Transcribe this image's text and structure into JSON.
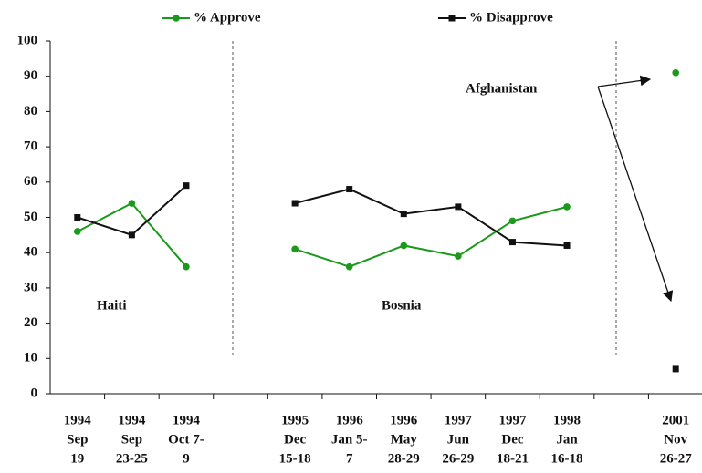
{
  "chart_data": {
    "type": "line",
    "categories": [
      [
        "1994",
        "Sep",
        "19"
      ],
      [
        "1994",
        "Sep",
        "23-25"
      ],
      [
        "1994",
        "Oct 7-",
        "9"
      ],
      null,
      [
        "1995",
        "Dec",
        "15-18"
      ],
      [
        "1996",
        "Jan 5-",
        "7"
      ],
      [
        "1996",
        "May",
        "28-29"
      ],
      [
        "1997",
        "Jun",
        "26-29"
      ],
      [
        "1997",
        "Dec",
        "18-21"
      ],
      [
        "1998",
        "Jan",
        "16-18"
      ],
      null,
      [
        "2001",
        "Nov",
        "26-27"
      ]
    ],
    "series": [
      {
        "name": "% Approve",
        "color": "#1a9a1a",
        "marker": "circle",
        "values": [
          46,
          54,
          36,
          null,
          41,
          36,
          42,
          39,
          49,
          53,
          null,
          91
        ]
      },
      {
        "name": "% Disapprove",
        "color": "#111111",
        "marker": "square",
        "values": [
          50,
          45,
          59,
          null,
          54,
          58,
          51,
          53,
          43,
          42,
          null,
          7
        ]
      }
    ],
    "annotations": [
      "Haiti",
      "Bosnia",
      "Afghanistan"
    ],
    "ylim": [
      0,
      100
    ],
    "yticks": [
      0,
      10,
      20,
      30,
      40,
      50,
      60,
      70,
      80,
      90,
      100
    ],
    "grid": false,
    "legend": "top"
  }
}
